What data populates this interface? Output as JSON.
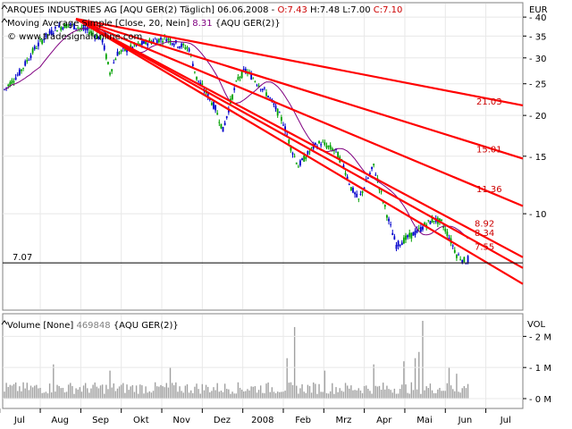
{
  "header": {
    "line1_name": "ARQUES INDUSTRIES AG [AQU GER(2)  Täglich] 06.06.2008 - ",
    "o": "O:7.43",
    "h": " H:7.48",
    "l": " L:7.00",
    "c": " C:7.10",
    "ma_name": "Moving Average Simple [Close, 20, Nein] ",
    "ma_value": "8.31",
    "ma_sym": " {AQU GER(2)}",
    "watermark": "© www.tradesignalonline.com",
    "volume_name": "Volume [None] ",
    "volume_value": "469848",
    "volume_sym": " {AQU GER(2)}"
  },
  "colors": {
    "up": "#00a000",
    "down": "#0000cc",
    "ma": "#800080",
    "trend": "#ff0000",
    "target_text": "#cc0000",
    "volume": "#a0a0a0",
    "close_line": "#000000",
    "c_value": "#cc0000",
    "ma_value": "#800080",
    "volume_value": "#808080"
  },
  "chart_data": [
    {
      "type": "line",
      "subtype": "candlestick",
      "title": "ARQUES INDUSTRIES AG [AQU GER(2)  Täglich]",
      "ylabel": "EUR",
      "y_scale": "log",
      "ylim": [
        5.1,
        44
      ],
      "y_ticks": [
        10,
        15,
        20,
        25,
        30,
        35,
        40
      ],
      "x_months": [
        "Jul",
        "Aug",
        "Sep",
        "Okt",
        "Nov",
        "Dez",
        "2008",
        "Feb",
        "Mrz",
        "Apr",
        "Mai",
        "Jun",
        "Jul"
      ],
      "price_path": [
        [
          0,
          24.0
        ],
        [
          8,
          27.0
        ],
        [
          16,
          32.0
        ],
        [
          22,
          35.0
        ],
        [
          28,
          37.0
        ],
        [
          34,
          38.0
        ],
        [
          40,
          37.0
        ],
        [
          46,
          36.0
        ],
        [
          52,
          34.0
        ],
        [
          56,
          27.0
        ],
        [
          60,
          31.0
        ],
        [
          66,
          32.0
        ],
        [
          72,
          33.0
        ],
        [
          80,
          34.0
        ],
        [
          86,
          34.5
        ],
        [
          92,
          33.0
        ],
        [
          98,
          32.0
        ],
        [
          102,
          26.0
        ],
        [
          108,
          23.0
        ],
        [
          112,
          21.0
        ],
        [
          116,
          18.0
        ],
        [
          120,
          22.0
        ],
        [
          124,
          26.0
        ],
        [
          128,
          27.5
        ],
        [
          132,
          26.0
        ],
        [
          136,
          24.5
        ],
        [
          140,
          23.0
        ],
        [
          144,
          21.0
        ],
        [
          148,
          19.0
        ],
        [
          152,
          16.0
        ],
        [
          156,
          14.0
        ],
        [
          160,
          15.0
        ],
        [
          164,
          16.0
        ],
        [
          168,
          16.5
        ],
        [
          172,
          16.0
        ],
        [
          176,
          15.5
        ],
        [
          180,
          14.0
        ],
        [
          184,
          12.0
        ],
        [
          188,
          11.0
        ],
        [
          192,
          12.5
        ],
        [
          196,
          14.0
        ],
        [
          200,
          11.5
        ],
        [
          204,
          9.5
        ],
        [
          208,
          8.0
        ],
        [
          212,
          8.3
        ],
        [
          216,
          8.6
        ],
        [
          220,
          8.9
        ],
        [
          224,
          9.3
        ],
        [
          228,
          9.6
        ],
        [
          232,
          9.4
        ],
        [
          236,
          8.5
        ],
        [
          240,
          7.5
        ],
        [
          244,
          7.2
        ],
        [
          246,
          7.1
        ]
      ],
      "ma_name": "Moving Average Simple [Close, 20, Nein]",
      "ma_last": 8.31,
      "last": {
        "date": "06.06.2008",
        "open": 7.43,
        "high": 7.48,
        "low": 7.0,
        "close": 7.1
      },
      "close_line_value": 7.07,
      "close_line_label": "7.07",
      "trendline_targets": [
        {
          "label": "21.03",
          "value": 21.03
        },
        {
          "label": "15.01",
          "value": 15.01
        },
        {
          "label": "11.36",
          "value": 11.36
        },
        {
          "label": "8.92",
          "value": 8.92
        },
        {
          "label": "8.34",
          "value": 8.34
        },
        {
          "label": "7.55",
          "value": 7.55
        }
      ]
    },
    {
      "type": "bar",
      "title": "Volume [None]",
      "ylabel": "VOL",
      "y_ticks": [
        "2 M",
        "1 M",
        "0 M"
      ],
      "ylim": [
        0,
        2700000
      ],
      "last_value": 469848
    }
  ]
}
